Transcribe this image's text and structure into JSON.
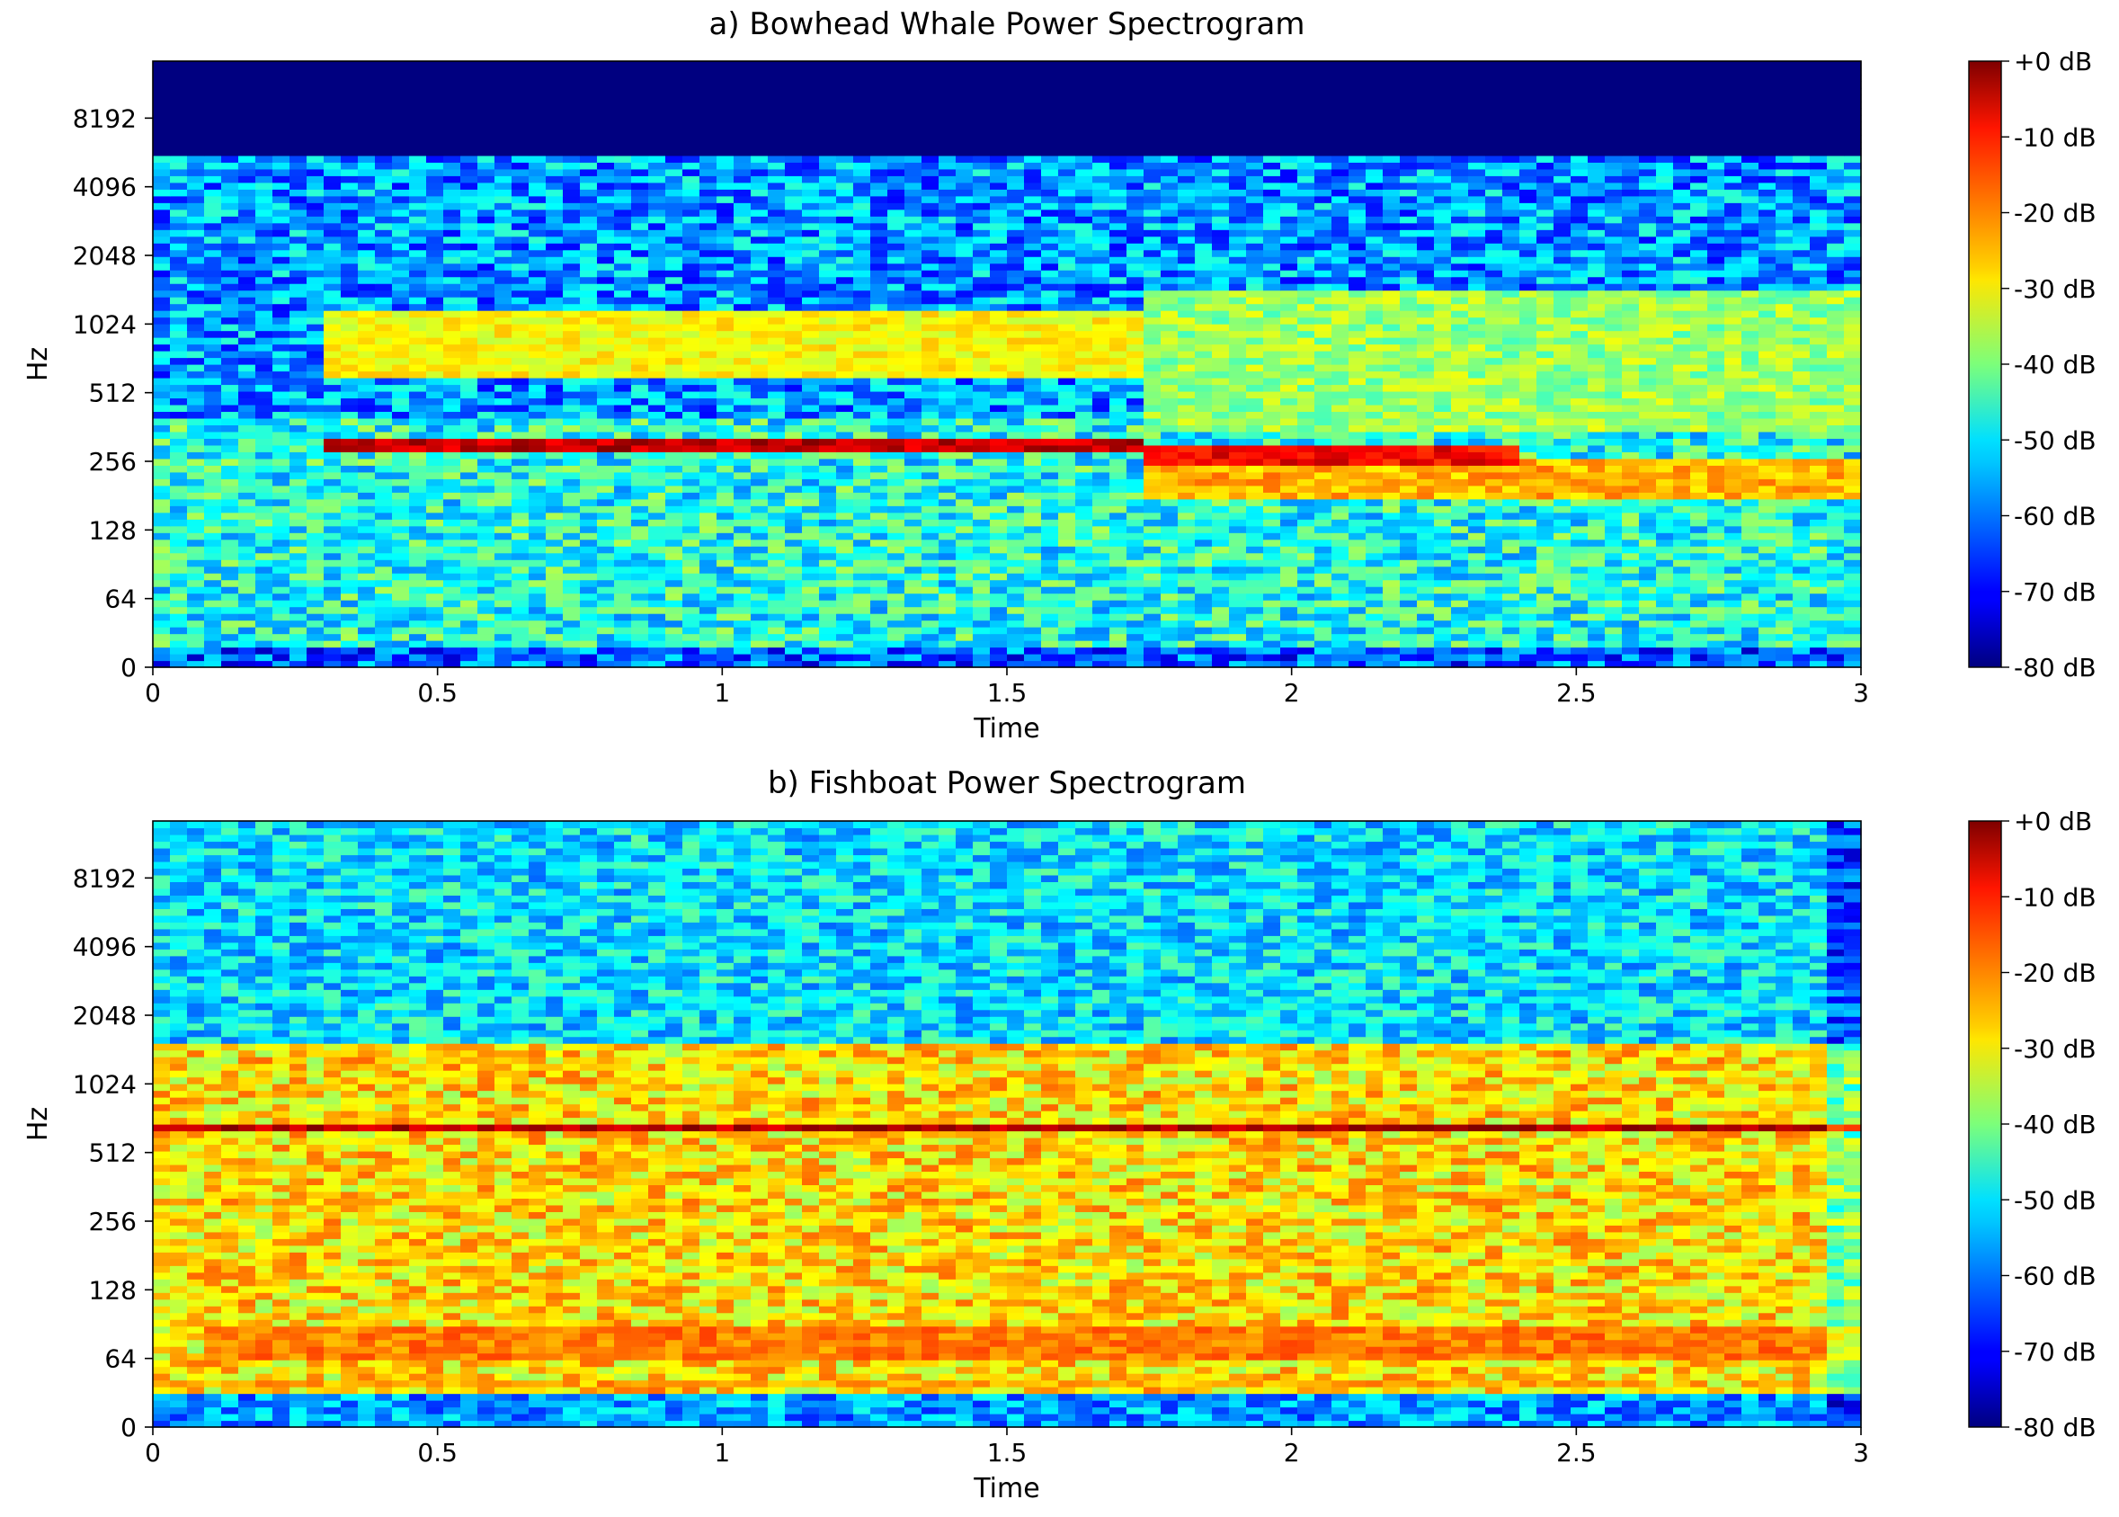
{
  "chart_data": [
    {
      "type": "heatmap",
      "title": "a) Bowhead Whale Power Spectrogram",
      "xlabel": "Time",
      "ylabel": "Hz",
      "xlim": [
        0,
        3
      ],
      "x_ticks": [
        0,
        0.5,
        1,
        1.5,
        2,
        2.5,
        3
      ],
      "x_tick_labels": [
        "0",
        "0.5",
        "1",
        "1.5",
        "2",
        "2.5",
        "3"
      ],
      "y_scale": "log2",
      "y_ticks": [
        0,
        64,
        128,
        256,
        512,
        1024,
        2048,
        4096,
        8192
      ],
      "y_tick_labels": [
        "0",
        "64",
        "128",
        "256",
        "512",
        "1024",
        "2048",
        "4096",
        "8192"
      ],
      "colormap": "jet",
      "colorbar": {
        "range_db": [
          -80,
          0
        ],
        "tick_values": [
          0,
          -10,
          -20,
          -30,
          -40,
          -50,
          -60,
          -70,
          -80
        ],
        "tick_labels": [
          "+0 dB",
          "-10 dB",
          "-20 dB",
          "-30 dB",
          "-40 dB",
          "-50 dB",
          "-60 dB",
          "-70 dB",
          "-80 dB"
        ]
      },
      "grid": false,
      "values_db": {
        "background_low_freq": -48,
        "background_mid_freq": -58,
        "above_5500hz": -80
      },
      "features": [
        {
          "time_range": [
            0.3,
            1.75
          ],
          "freq_hz": [
            290,
            320
          ],
          "level_db": -5
        },
        {
          "time_range": [
            1.75,
            2.4
          ],
          "freq_hz": [
            240,
            300
          ],
          "level_db": -10
        },
        {
          "time_range": [
            0.3,
            1.75
          ],
          "freq_hz": [
            600,
            1150
          ],
          "level_db": -30
        }
      ]
    },
    {
      "type": "heatmap",
      "title": "b) Fishboat Power Spectrogram",
      "xlabel": "Time",
      "ylabel": "Hz",
      "xlim": [
        0,
        3
      ],
      "x_ticks": [
        0,
        0.5,
        1,
        1.5,
        2,
        2.5,
        3
      ],
      "x_tick_labels": [
        "0",
        "0.5",
        "1",
        "1.5",
        "2",
        "2.5",
        "3"
      ],
      "y_scale": "log2",
      "y_ticks": [
        0,
        64,
        128,
        256,
        512,
        1024,
        2048,
        4096,
        8192
      ],
      "y_tick_labels": [
        "0",
        "64",
        "128",
        "256",
        "512",
        "1024",
        "2048",
        "4096",
        "8192"
      ],
      "colormap": "jet",
      "colorbar": {
        "range_db": [
          -80,
          0
        ],
        "tick_values": [
          0,
          -10,
          -20,
          -30,
          -40,
          -50,
          -60,
          -70,
          -80
        ],
        "tick_labels": [
          "+0 dB",
          "-10 dB",
          "-20 dB",
          "-30 dB",
          "-40 dB",
          "-50 dB",
          "-60 dB",
          "-70 dB",
          "-80 dB"
        ]
      },
      "grid": false,
      "values_db": {
        "background_low_freq": -28,
        "background_high_freq": -52,
        "lowest_band": -58
      },
      "features": [
        {
          "time_range": [
            0,
            3
          ],
          "freq_hz": [
            640,
            690
          ],
          "level_db": -4
        },
        {
          "time_range": [
            0.1,
            3
          ],
          "freq_hz": [
            64,
            90
          ],
          "level_db": -20
        },
        {
          "time_range": [
            0,
            2.6
          ],
          "freq_hz": [
            40,
            46
          ],
          "level_db": -24
        }
      ]
    }
  ]
}
